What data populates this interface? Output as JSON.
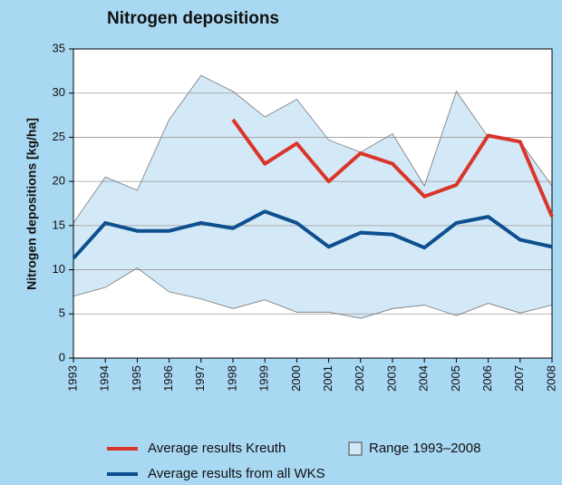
{
  "chart_data": {
    "type": "line",
    "title": "Nitrogen depositions",
    "y_label": "Nitrogen depositions [kg/ha]",
    "categories": [
      "1993",
      "1994",
      "1995",
      "1996",
      "1997",
      "1998",
      "1999",
      "2000",
      "2001",
      "2002",
      "2003",
      "2004",
      "2005",
      "2006",
      "2007",
      "2008"
    ],
    "ylim": [
      0,
      35
    ],
    "yticks": [
      0,
      5,
      10,
      15,
      20,
      25,
      30,
      35
    ],
    "grid": true,
    "range": {
      "name": "Range 1993–2008",
      "color": "#d4e9f7",
      "edge_color": "#777777",
      "high": [
        15.3,
        20.5,
        19,
        27,
        32,
        30.2,
        27.3,
        29.3,
        24.7,
        23.3,
        25.4,
        19.5,
        30.2,
        25,
        24.5,
        19.5
      ],
      "low": [
        7,
        8,
        10.2,
        7.5,
        6.7,
        5.6,
        6.6,
        5.2,
        5.2,
        4.5,
        5.6,
        6,
        4.8,
        6.2,
        5.1,
        6
      ]
    },
    "series": [
      {
        "name": "Average results Kreuth",
        "color": "#d9352a",
        "values": [
          null,
          null,
          null,
          null,
          null,
          27,
          22,
          24.3,
          20,
          23.2,
          22,
          18.3,
          19.6,
          25.2,
          24.5,
          16
        ]
      },
      {
        "name": "Average results from all WKS",
        "color": "#0d4f8f",
        "values": [
          11.3,
          15.3,
          14.4,
          14.4,
          15.3,
          14.7,
          16.6,
          15.3,
          12.6,
          14.2,
          14,
          12.5,
          15.3,
          16,
          13.4,
          12.6
        ]
      }
    ]
  }
}
